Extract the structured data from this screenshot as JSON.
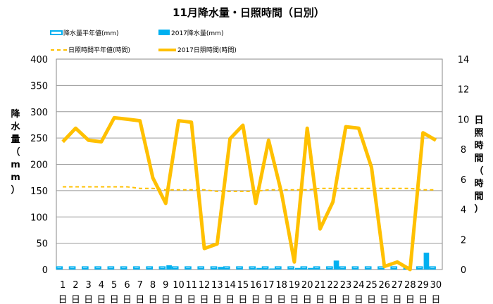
{
  "chart_data": {
    "type": "bar+line",
    "title": "11月降水量・日照時間（日別）",
    "categories": [
      "1",
      "2",
      "3",
      "4",
      "5",
      "6",
      "7",
      "8",
      "9",
      "10",
      "11",
      "12",
      "13",
      "14",
      "15",
      "16",
      "17",
      "18",
      "19",
      "20",
      "21",
      "22",
      "23",
      "24",
      "25",
      "26",
      "27",
      "28",
      "29",
      "30"
    ],
    "day_unit": "日",
    "ylabel_left": "降水量（mm）",
    "ylabel_right": "日照時間（時間）",
    "ylim_left": [
      0,
      400
    ],
    "yticks_left": [
      0,
      50,
      100,
      150,
      200,
      250,
      300,
      350,
      400
    ],
    "ylim_right": [
      0,
      14
    ],
    "yticks_right": [
      0,
      2,
      4,
      6,
      8,
      10,
      12,
      14
    ],
    "grid": true,
    "legend_position": "top",
    "series": [
      {
        "name": "降水量平年値(mm)",
        "type": "bar",
        "axis": "left",
        "style": "outline",
        "color": "#00b0f0",
        "values": [
          4.8,
          4.8,
          4.8,
          4.8,
          4.8,
          4.8,
          4.8,
          4.8,
          4.8,
          4.8,
          4.8,
          4.8,
          4.8,
          4.8,
          4.8,
          4.8,
          4.8,
          4.8,
          4.8,
          4.8,
          4.8,
          4.8,
          4.8,
          4.8,
          4.8,
          4.8,
          4.8,
          4.8,
          4.8,
          4.8
        ]
      },
      {
        "name": "2017降水量(mm)",
        "type": "bar",
        "axis": "left",
        "style": "filled",
        "color": "#00b0f0",
        "values": [
          0,
          0,
          0,
          0,
          0,
          0,
          0,
          0,
          8,
          0,
          0,
          0,
          5,
          0,
          0,
          3,
          2,
          0,
          3,
          3,
          0,
          17,
          0,
          0,
          0,
          0,
          0,
          0,
          32,
          0
        ]
      },
      {
        "name": "日照時間平年値(時間)",
        "type": "line",
        "axis": "right",
        "style": "dashed",
        "color": "#ffc000",
        "values": [
          5.5,
          5.5,
          5.5,
          5.5,
          5.5,
          5.5,
          5.4,
          5.4,
          5.3,
          5.3,
          5.3,
          5.3,
          5.2,
          5.2,
          5.2,
          5.2,
          5.3,
          5.3,
          5.3,
          5.3,
          5.4,
          5.4,
          5.4,
          5.4,
          5.4,
          5.4,
          5.4,
          5.4,
          5.3,
          5.3
        ]
      },
      {
        "name": "2017日照時間(時間)",
        "type": "line",
        "axis": "right",
        "style": "solid",
        "color": "#ffc000",
        "values": [
          8.5,
          9.4,
          8.6,
          8.5,
          10.1,
          10.0,
          9.9,
          6.1,
          4.4,
          9.9,
          9.8,
          1.4,
          1.7,
          8.7,
          9.6,
          4.4,
          8.6,
          5.1,
          0.5,
          9.4,
          2.7,
          4.5,
          9.5,
          9.4,
          6.8,
          0.2,
          0.5,
          0.0,
          9.1,
          8.6
        ]
      }
    ]
  }
}
